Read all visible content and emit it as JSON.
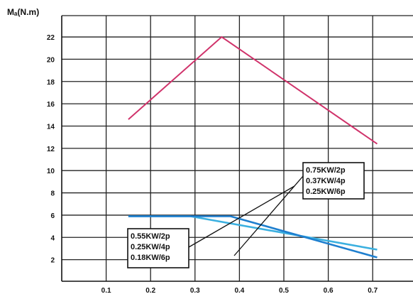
{
  "chart_data": {
    "type": "line",
    "ylabel": "Mₐ(N.m)",
    "xlabel": "",
    "xlim": [
      0.0,
      0.77
    ],
    "ylim": [
      0,
      24
    ],
    "x_ticks": [
      0.1,
      0.2,
      0.3,
      0.4,
      0.5,
      0.6,
      0.7
    ],
    "y_ticks": [
      2,
      4,
      6,
      8,
      10,
      12,
      14,
      16,
      18,
      20,
      22
    ],
    "grid": true,
    "series": [
      {
        "x": [
          0.15,
          0.36,
          0.71
        ],
        "y": [
          14.6,
          22.0,
          12.4
        ],
        "color": "#d0336b"
      },
      {
        "x": [
          0.15,
          0.29,
          0.71
        ],
        "y": [
          5.9,
          5.9,
          2.9
        ],
        "color": "#3bb0e0"
      },
      {
        "x": [
          0.15,
          0.38,
          0.71
        ],
        "y": [
          5.9,
          5.9,
          2.2
        ],
        "color": "#1e7fcf"
      }
    ],
    "annotations": [
      {
        "lines": [
          "0.75KW/2p",
          "0.37KW/4p",
          "0.25KW/6p"
        ]
      },
      {
        "lines": [
          "0.55KW/2p",
          "0.25KW/4p",
          "0.18KW/6p"
        ]
      }
    ]
  }
}
